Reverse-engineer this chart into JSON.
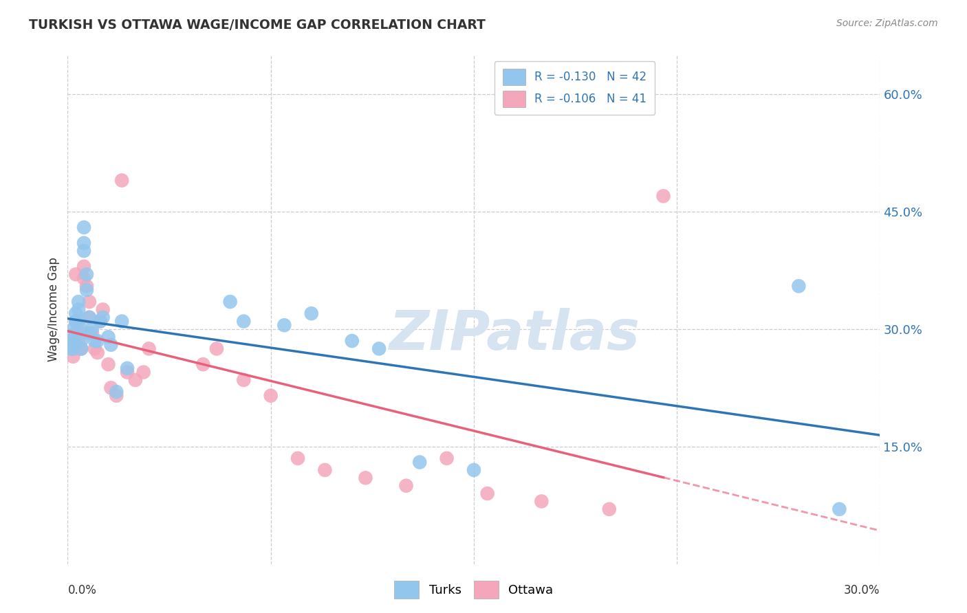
{
  "title": "TURKISH VS OTTAWA WAGE/INCOME GAP CORRELATION CHART",
  "source": "Source: ZipAtlas.com",
  "ylabel": "Wage/Income Gap",
  "xmin": 0.0,
  "xmax": 0.3,
  "ymin": 0.0,
  "ymax": 0.65,
  "ytick_vals": [
    0.15,
    0.3,
    0.45,
    0.6
  ],
  "turks_R": -0.13,
  "turks_N": 42,
  "ottawa_R": -0.106,
  "ottawa_N": 41,
  "turks_color": "#93c6ed",
  "ottawa_color": "#f4a7bb",
  "trend_turks_color": "#2e75b6",
  "trend_ottawa_color": "#e8607a",
  "watermark_color": "#d5e4f0",
  "background_color": "#ffffff",
  "grid_color": "#cccccc",
  "right_axis_color": "#2e75b6",
  "turks_x": [
    0.001,
    0.001,
    0.002,
    0.002,
    0.002,
    0.003,
    0.003,
    0.003,
    0.003,
    0.004,
    0.004,
    0.004,
    0.005,
    0.005,
    0.005,
    0.006,
    0.006,
    0.006,
    0.007,
    0.007,
    0.008,
    0.008,
    0.009,
    0.01,
    0.011,
    0.012,
    0.013,
    0.015,
    0.016,
    0.018,
    0.02,
    0.022,
    0.06,
    0.065,
    0.08,
    0.09,
    0.105,
    0.115,
    0.13,
    0.15,
    0.27,
    0.285
  ],
  "turks_y": [
    0.285,
    0.275,
    0.3,
    0.285,
    0.275,
    0.32,
    0.31,
    0.295,
    0.28,
    0.335,
    0.325,
    0.31,
    0.3,
    0.285,
    0.275,
    0.41,
    0.43,
    0.4,
    0.37,
    0.35,
    0.315,
    0.295,
    0.3,
    0.285,
    0.285,
    0.31,
    0.315,
    0.29,
    0.28,
    0.22,
    0.31,
    0.25,
    0.335,
    0.31,
    0.305,
    0.32,
    0.285,
    0.275,
    0.13,
    0.12,
    0.355,
    0.07
  ],
  "ottawa_x": [
    0.001,
    0.002,
    0.002,
    0.003,
    0.003,
    0.003,
    0.004,
    0.004,
    0.005,
    0.005,
    0.006,
    0.006,
    0.007,
    0.008,
    0.008,
    0.009,
    0.01,
    0.011,
    0.012,
    0.013,
    0.015,
    0.016,
    0.018,
    0.02,
    0.022,
    0.025,
    0.028,
    0.03,
    0.05,
    0.055,
    0.065,
    0.075,
    0.085,
    0.095,
    0.11,
    0.125,
    0.14,
    0.155,
    0.175,
    0.2,
    0.22
  ],
  "ottawa_y": [
    0.285,
    0.275,
    0.265,
    0.295,
    0.31,
    0.37,
    0.285,
    0.275,
    0.275,
    0.295,
    0.365,
    0.38,
    0.355,
    0.335,
    0.315,
    0.295,
    0.275,
    0.27,
    0.31,
    0.325,
    0.255,
    0.225,
    0.215,
    0.49,
    0.245,
    0.235,
    0.245,
    0.275,
    0.255,
    0.275,
    0.235,
    0.215,
    0.135,
    0.12,
    0.11,
    0.1,
    0.135,
    0.09,
    0.08,
    0.07,
    0.47
  ]
}
